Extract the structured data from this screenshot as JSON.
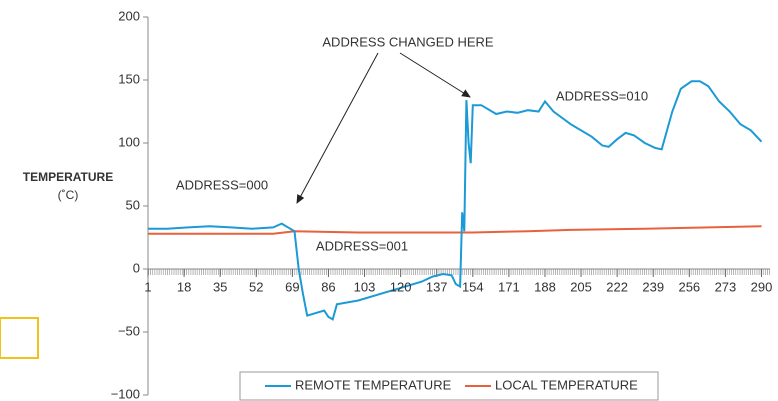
{
  "chart_data": {
    "type": "line",
    "y_axis_label": "TEMPERATURE",
    "y_axis_unit": "(˚C)",
    "annotations": [
      "ADDRESS CHANGED HERE",
      "ADDRESS=000",
      "ADDRESS=001",
      "ADDRESS=010"
    ],
    "series": [
      {
        "name": "REMOTE TEMPERATURE",
        "color": "#1b9ad6",
        "x": [
          1,
          10,
          20,
          30,
          40,
          50,
          60,
          64,
          68,
          70,
          72,
          74,
          76,
          80,
          84,
          86,
          88,
          90,
          100,
          110,
          120,
          130,
          135,
          140,
          144,
          146,
          148,
          149,
          150,
          151,
          152,
          153,
          154,
          158,
          165,
          170,
          175,
          180,
          185,
          188,
          192,
          200,
          210,
          215,
          218,
          222,
          226,
          230,
          235,
          240,
          243,
          248,
          252,
          257,
          261,
          265,
          270,
          275,
          280,
          285,
          290
        ],
        "values": [
          32,
          32,
          33,
          34,
          33,
          32,
          33,
          36,
          32,
          30,
          0,
          -20,
          -37,
          -35,
          -33,
          -38,
          -40,
          -28,
          -25,
          -20,
          -15,
          -10,
          -6,
          -4,
          -5,
          -12,
          -14,
          45,
          30,
          134,
          100,
          84,
          130,
          130,
          123,
          125,
          124,
          126,
          125,
          133,
          125,
          115,
          105,
          98,
          97,
          103,
          108,
          106,
          100,
          96,
          95,
          125,
          143,
          149,
          149,
          145,
          133,
          125,
          115,
          110,
          101
        ]
      },
      {
        "name": "LOCAL TEMPERATURE",
        "color": "#e8603c",
        "x": [
          1,
          60,
          70,
          100,
          150,
          154,
          180,
          200,
          235,
          290
        ],
        "values": [
          28,
          28,
          30,
          29,
          29,
          29,
          30,
          31,
          32,
          34
        ]
      }
    ],
    "xlim": [
      1,
      294
    ],
    "xticks": [
      1,
      18,
      35,
      52,
      69,
      86,
      103,
      120,
      137,
      154,
      171,
      188,
      205,
      222,
      239,
      256,
      273,
      290
    ],
    "ylim": [
      -100,
      200
    ],
    "yticks": [
      200,
      150,
      100,
      50,
      0,
      {
        "value": -50,
        "label": "−50"
      },
      {
        "value": -100,
        "label": "−100"
      }
    ],
    "legend": "bottom"
  }
}
